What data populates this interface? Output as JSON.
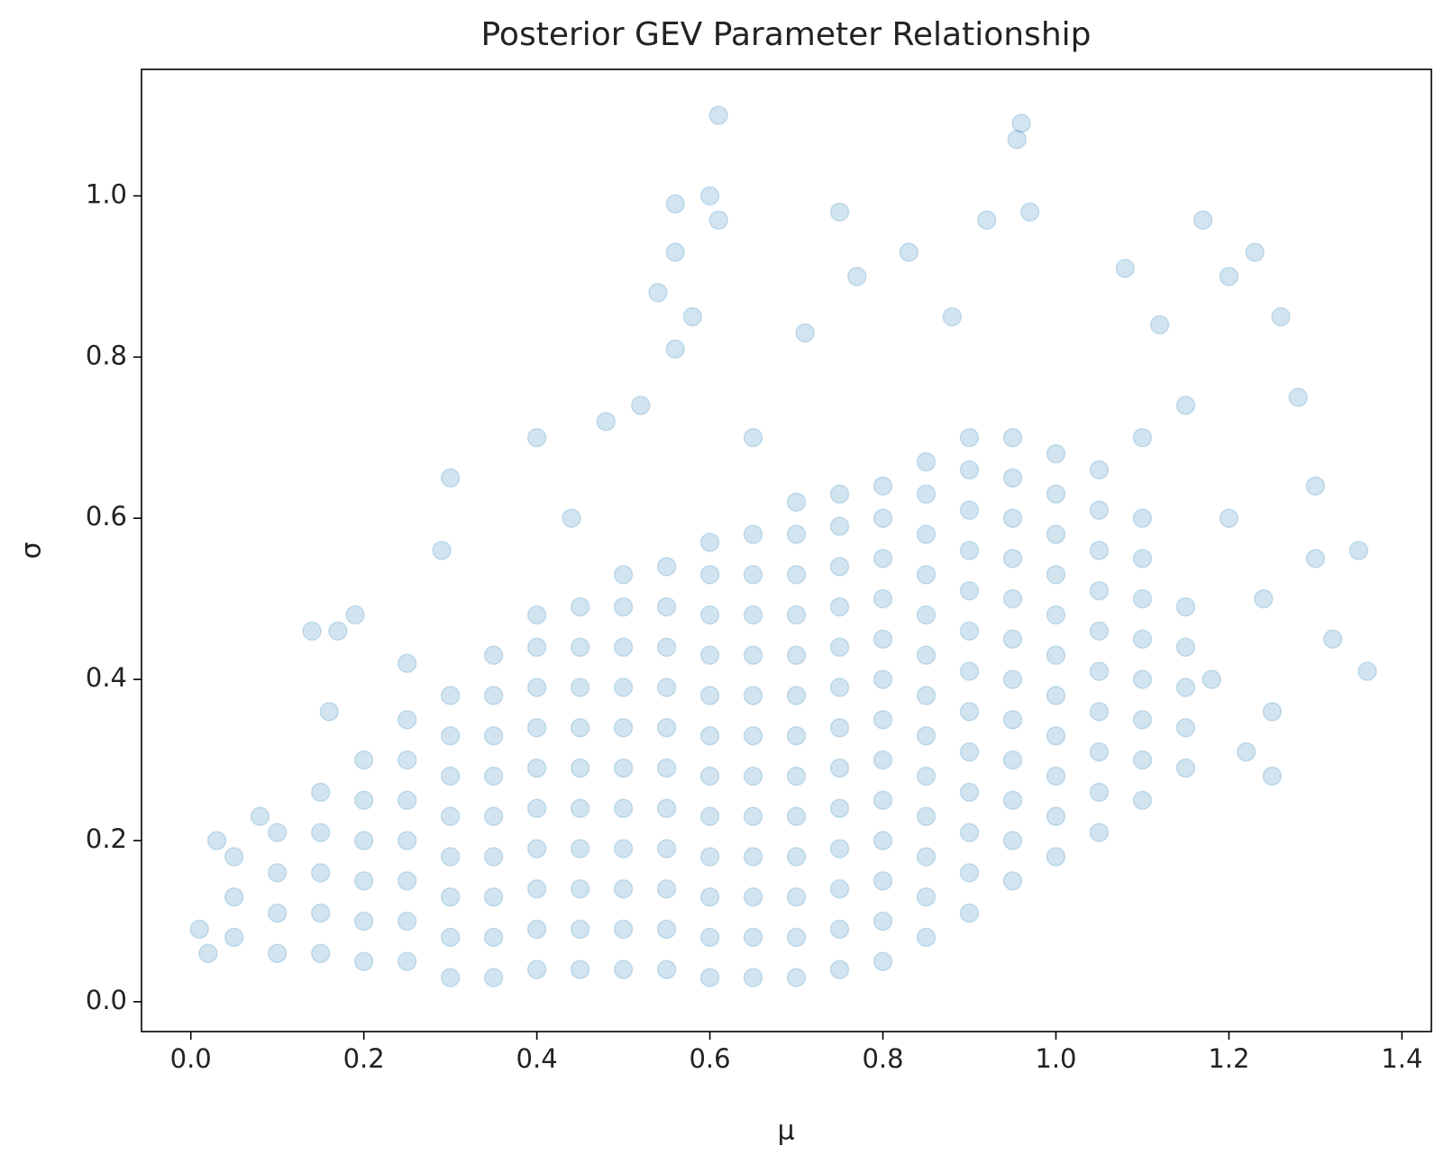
{
  "chart_data": {
    "type": "scatter",
    "title": "Posterior GEV Parameter Relationship",
    "x_label": "μ",
    "y_label": "σ",
    "color": "#1f77b4",
    "alpha": 0.2,
    "xlim": [
      -0.057,
      1.434
    ],
    "ylim": [
      -0.037,
      1.157
    ],
    "xticks": [
      {
        "value": 0,
        "label": "0.0"
      },
      0.2,
      0.4,
      0.6,
      0.8,
      {
        "value": 1,
        "label": "1.0"
      },
      1.2,
      1.4
    ],
    "yticks": [
      {
        "value": 0,
        "label": "0.0"
      },
      0.2,
      0.4,
      0.6,
      0.8,
      {
        "value": 1,
        "label": "1.0"
      }
    ],
    "x": [
      0.05,
      0.05,
      0.05,
      0.1,
      0.1,
      0.1,
      0.1,
      0.15,
      0.15,
      0.15,
      0.15,
      0.15,
      0.2,
      0.2,
      0.2,
      0.2,
      0.2,
      0.2,
      0.25,
      0.25,
      0.25,
      0.25,
      0.25,
      0.25,
      0.25,
      0.3,
      0.3,
      0.3,
      0.3,
      0.3,
      0.3,
      0.3,
      0.3,
      0.35,
      0.35,
      0.35,
      0.35,
      0.35,
      0.35,
      0.35,
      0.35,
      0.35,
      0.4,
      0.4,
      0.4,
      0.4,
      0.4,
      0.4,
      0.4,
      0.4,
      0.4,
      0.4,
      0.45,
      0.45,
      0.45,
      0.45,
      0.45,
      0.45,
      0.45,
      0.45,
      0.45,
      0.45,
      0.5,
      0.5,
      0.5,
      0.5,
      0.5,
      0.5,
      0.5,
      0.5,
      0.5,
      0.5,
      0.5,
      0.55,
      0.55,
      0.55,
      0.55,
      0.55,
      0.55,
      0.55,
      0.55,
      0.55,
      0.55,
      0.55,
      0.6,
      0.6,
      0.6,
      0.6,
      0.6,
      0.6,
      0.6,
      0.6,
      0.6,
      0.6,
      0.6,
      0.6,
      0.65,
      0.65,
      0.65,
      0.65,
      0.65,
      0.65,
      0.65,
      0.65,
      0.65,
      0.65,
      0.65,
      0.65,
      0.7,
      0.7,
      0.7,
      0.7,
      0.7,
      0.7,
      0.7,
      0.7,
      0.7,
      0.7,
      0.7,
      0.7,
      0.7,
      0.75,
      0.75,
      0.75,
      0.75,
      0.75,
      0.75,
      0.75,
      0.75,
      0.75,
      0.75,
      0.75,
      0.75,
      0.75,
      0.8,
      0.8,
      0.8,
      0.8,
      0.8,
      0.8,
      0.8,
      0.8,
      0.8,
      0.8,
      0.8,
      0.8,
      0.8,
      0.85,
      0.85,
      0.85,
      0.85,
      0.85,
      0.85,
      0.85,
      0.85,
      0.85,
      0.85,
      0.85,
      0.85,
      0.85,
      0.9,
      0.9,
      0.9,
      0.9,
      0.9,
      0.9,
      0.9,
      0.9,
      0.9,
      0.9,
      0.9,
      0.9,
      0.9,
      0.95,
      0.95,
      0.95,
      0.95,
      0.95,
      0.95,
      0.95,
      0.95,
      0.95,
      0.95,
      0.95,
      0.95,
      1.0,
      1.0,
      1.0,
      1.0,
      1.0,
      1.0,
      1.0,
      1.0,
      1.0,
      1.0,
      1.0,
      1.05,
      1.05,
      1.05,
      1.05,
      1.05,
      1.05,
      1.05,
      1.05,
      1.05,
      1.05,
      1.1,
      1.1,
      1.1,
      1.1,
      1.1,
      1.1,
      1.1,
      1.1,
      1.15,
      1.15,
      1.15,
      1.15,
      1.15,
      0.61,
      0.96,
      0.955,
      0.56,
      0.6,
      0.61,
      0.75,
      0.56,
      0.54,
      0.58,
      0.56,
      0.3,
      0.29,
      0.14,
      0.17,
      0.19,
      0.16,
      0.01,
      1.36,
      1.35,
      1.3,
      1.26,
      1.17,
      1.2,
      1.23,
      0.92,
      0.97,
      1.08,
      0.77,
      0.83,
      1.28,
      1.24,
      1.32,
      1.25,
      1.22,
      0.4,
      0.48,
      0.52,
      1.12,
      0.88,
      0.71,
      1.1,
      1.2,
      1.3,
      0.03,
      0.08,
      0.02,
      0.25,
      0.44,
      0.65,
      1.15,
      1.18,
      1.25
    ],
    "y": [
      0.08,
      0.13,
      0.18,
      0.06,
      0.11,
      0.16,
      0.21,
      0.06,
      0.11,
      0.16,
      0.21,
      0.26,
      0.05,
      0.1,
      0.15,
      0.2,
      0.25,
      0.3,
      0.05,
      0.1,
      0.15,
      0.2,
      0.25,
      0.3,
      0.35,
      0.03,
      0.08,
      0.13,
      0.18,
      0.23,
      0.28,
      0.33,
      0.38,
      0.03,
      0.08,
      0.13,
      0.18,
      0.23,
      0.28,
      0.33,
      0.38,
      0.43,
      0.04,
      0.09,
      0.14,
      0.19,
      0.24,
      0.29,
      0.34,
      0.39,
      0.44,
      0.48,
      0.04,
      0.09,
      0.14,
      0.19,
      0.24,
      0.29,
      0.34,
      0.39,
      0.44,
      0.49,
      0.04,
      0.09,
      0.14,
      0.19,
      0.24,
      0.29,
      0.34,
      0.39,
      0.44,
      0.49,
      0.53,
      0.04,
      0.09,
      0.14,
      0.19,
      0.24,
      0.29,
      0.34,
      0.39,
      0.44,
      0.49,
      0.54,
      0.03,
      0.08,
      0.13,
      0.18,
      0.23,
      0.28,
      0.33,
      0.38,
      0.43,
      0.48,
      0.53,
      0.57,
      0.03,
      0.08,
      0.13,
      0.18,
      0.23,
      0.28,
      0.33,
      0.38,
      0.43,
      0.48,
      0.53,
      0.58,
      0.03,
      0.08,
      0.13,
      0.18,
      0.23,
      0.28,
      0.33,
      0.38,
      0.43,
      0.48,
      0.53,
      0.58,
      0.62,
      0.04,
      0.09,
      0.14,
      0.19,
      0.24,
      0.29,
      0.34,
      0.39,
      0.44,
      0.49,
      0.54,
      0.59,
      0.63,
      0.05,
      0.1,
      0.15,
      0.2,
      0.25,
      0.3,
      0.35,
      0.4,
      0.45,
      0.5,
      0.55,
      0.6,
      0.64,
      0.08,
      0.13,
      0.18,
      0.23,
      0.28,
      0.33,
      0.38,
      0.43,
      0.48,
      0.53,
      0.58,
      0.63,
      0.67,
      0.11,
      0.16,
      0.21,
      0.26,
      0.31,
      0.36,
      0.41,
      0.46,
      0.51,
      0.56,
      0.61,
      0.66,
      0.7,
      0.15,
      0.2,
      0.25,
      0.3,
      0.35,
      0.4,
      0.45,
      0.5,
      0.55,
      0.6,
      0.65,
      0.7,
      0.18,
      0.23,
      0.28,
      0.33,
      0.38,
      0.43,
      0.48,
      0.53,
      0.58,
      0.63,
      0.68,
      0.21,
      0.26,
      0.31,
      0.36,
      0.41,
      0.46,
      0.51,
      0.56,
      0.61,
      0.66,
      0.25,
      0.3,
      0.35,
      0.4,
      0.45,
      0.5,
      0.55,
      0.6,
      0.29,
      0.34,
      0.39,
      0.44,
      0.49,
      1.1,
      1.09,
      1.07,
      0.99,
      1.0,
      0.97,
      0.98,
      0.93,
      0.88,
      0.85,
      0.81,
      0.65,
      0.56,
      0.46,
      0.46,
      0.48,
      0.36,
      0.09,
      0.41,
      0.56,
      0.64,
      0.85,
      0.97,
      0.9,
      0.93,
      0.97,
      0.98,
      0.91,
      0.9,
      0.93,
      0.75,
      0.5,
      0.45,
      0.36,
      0.31,
      0.7,
      0.72,
      0.74,
      0.84,
      0.85,
      0.83,
      0.7,
      0.6,
      0.55,
      0.2,
      0.23,
      0.06,
      0.42,
      0.6,
      0.7,
      0.74,
      0.4,
      0.28
    ]
  }
}
